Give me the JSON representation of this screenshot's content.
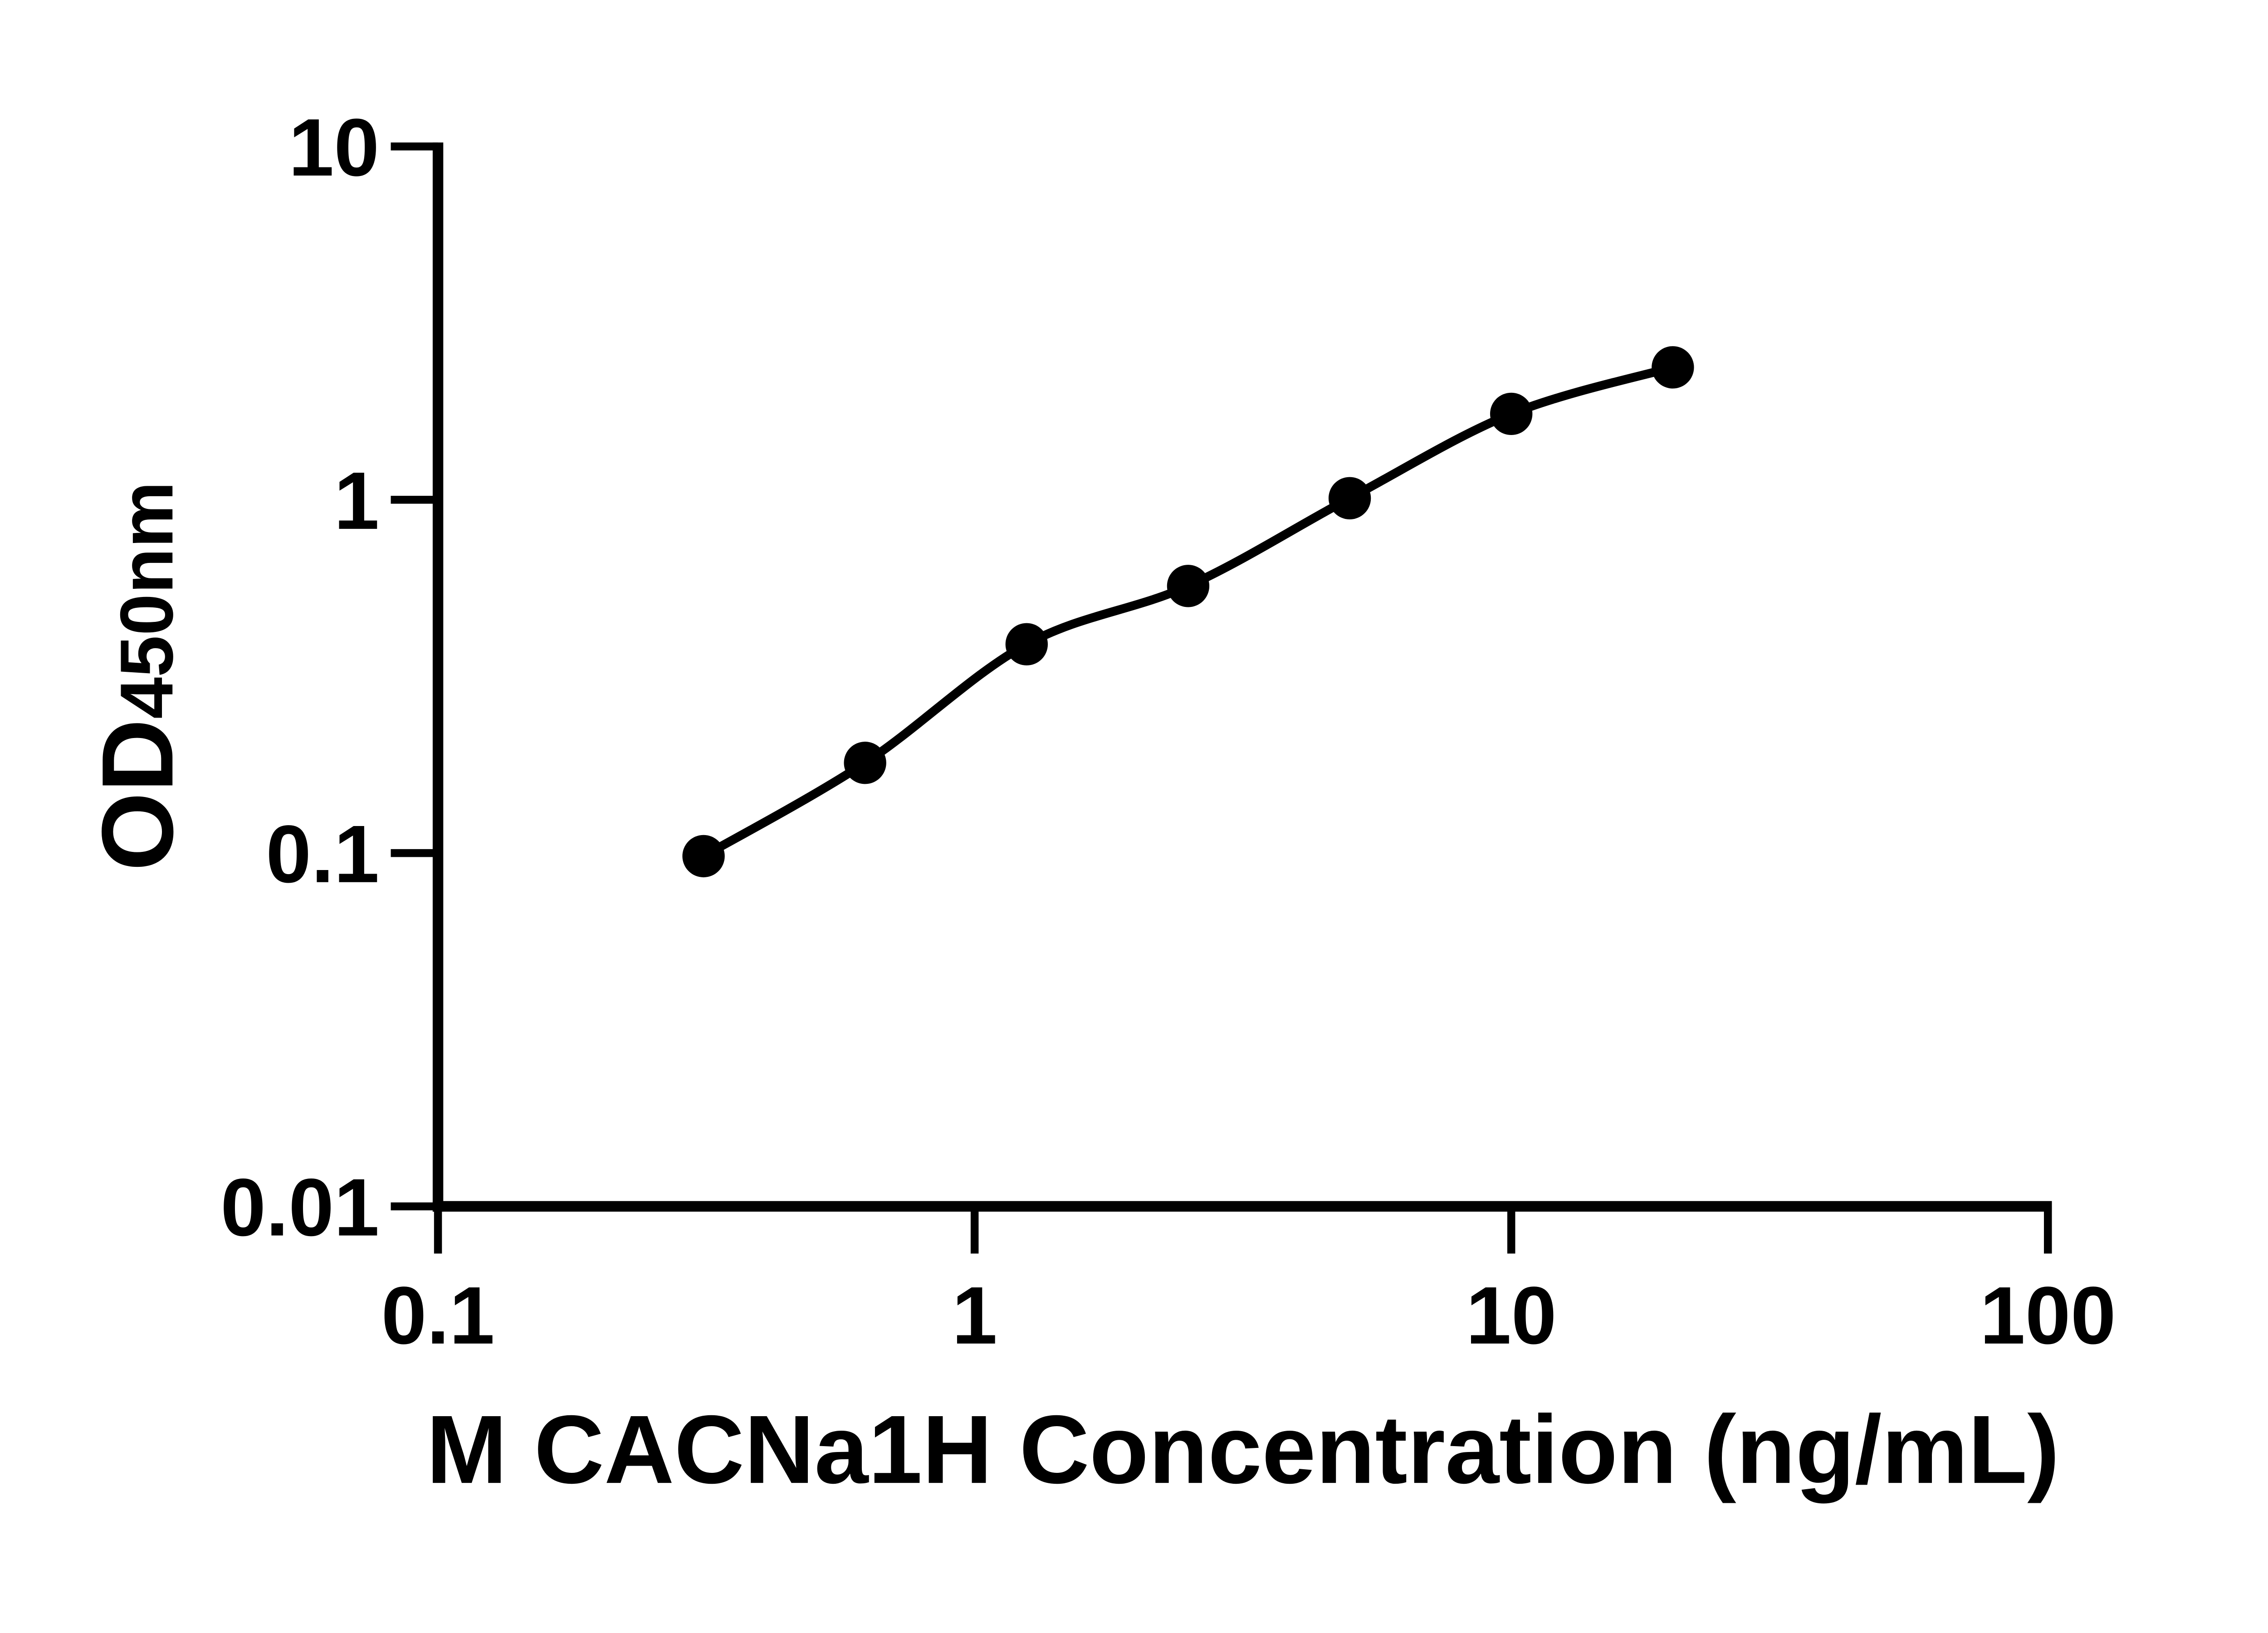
{
  "chart_data": {
    "type": "scatter",
    "title": "",
    "xlabel": "M CACNa1H Concentration (ng/mL)",
    "ylabel_main": "OD",
    "ylabel_sub": "450nm",
    "x": [
      0.3125,
      0.625,
      1.25,
      2.5,
      5,
      10,
      20
    ],
    "y": [
      0.098,
      0.18,
      0.39,
      0.57,
      1.01,
      1.75,
      2.37
    ],
    "xlim": [
      0.1,
      100
    ],
    "ylim": [
      0.01,
      10
    ],
    "x_scale": "log",
    "y_scale": "log",
    "x_ticks": [
      0.1,
      1,
      10,
      100
    ],
    "x_tick_labels": [
      "0.1",
      "1",
      "10",
      "100"
    ],
    "y_ticks": [
      10,
      1,
      0.1,
      0.01
    ],
    "y_tick_labels": [
      "10",
      "1",
      "0.1",
      "0.01"
    ],
    "grid": false,
    "legend": "none",
    "curve": "smooth fit through points",
    "marker_shape": "filled-circle",
    "marker_color": "#000000",
    "line_color": "#000000",
    "axis_color": "#000000",
    "background": "#ffffff"
  }
}
